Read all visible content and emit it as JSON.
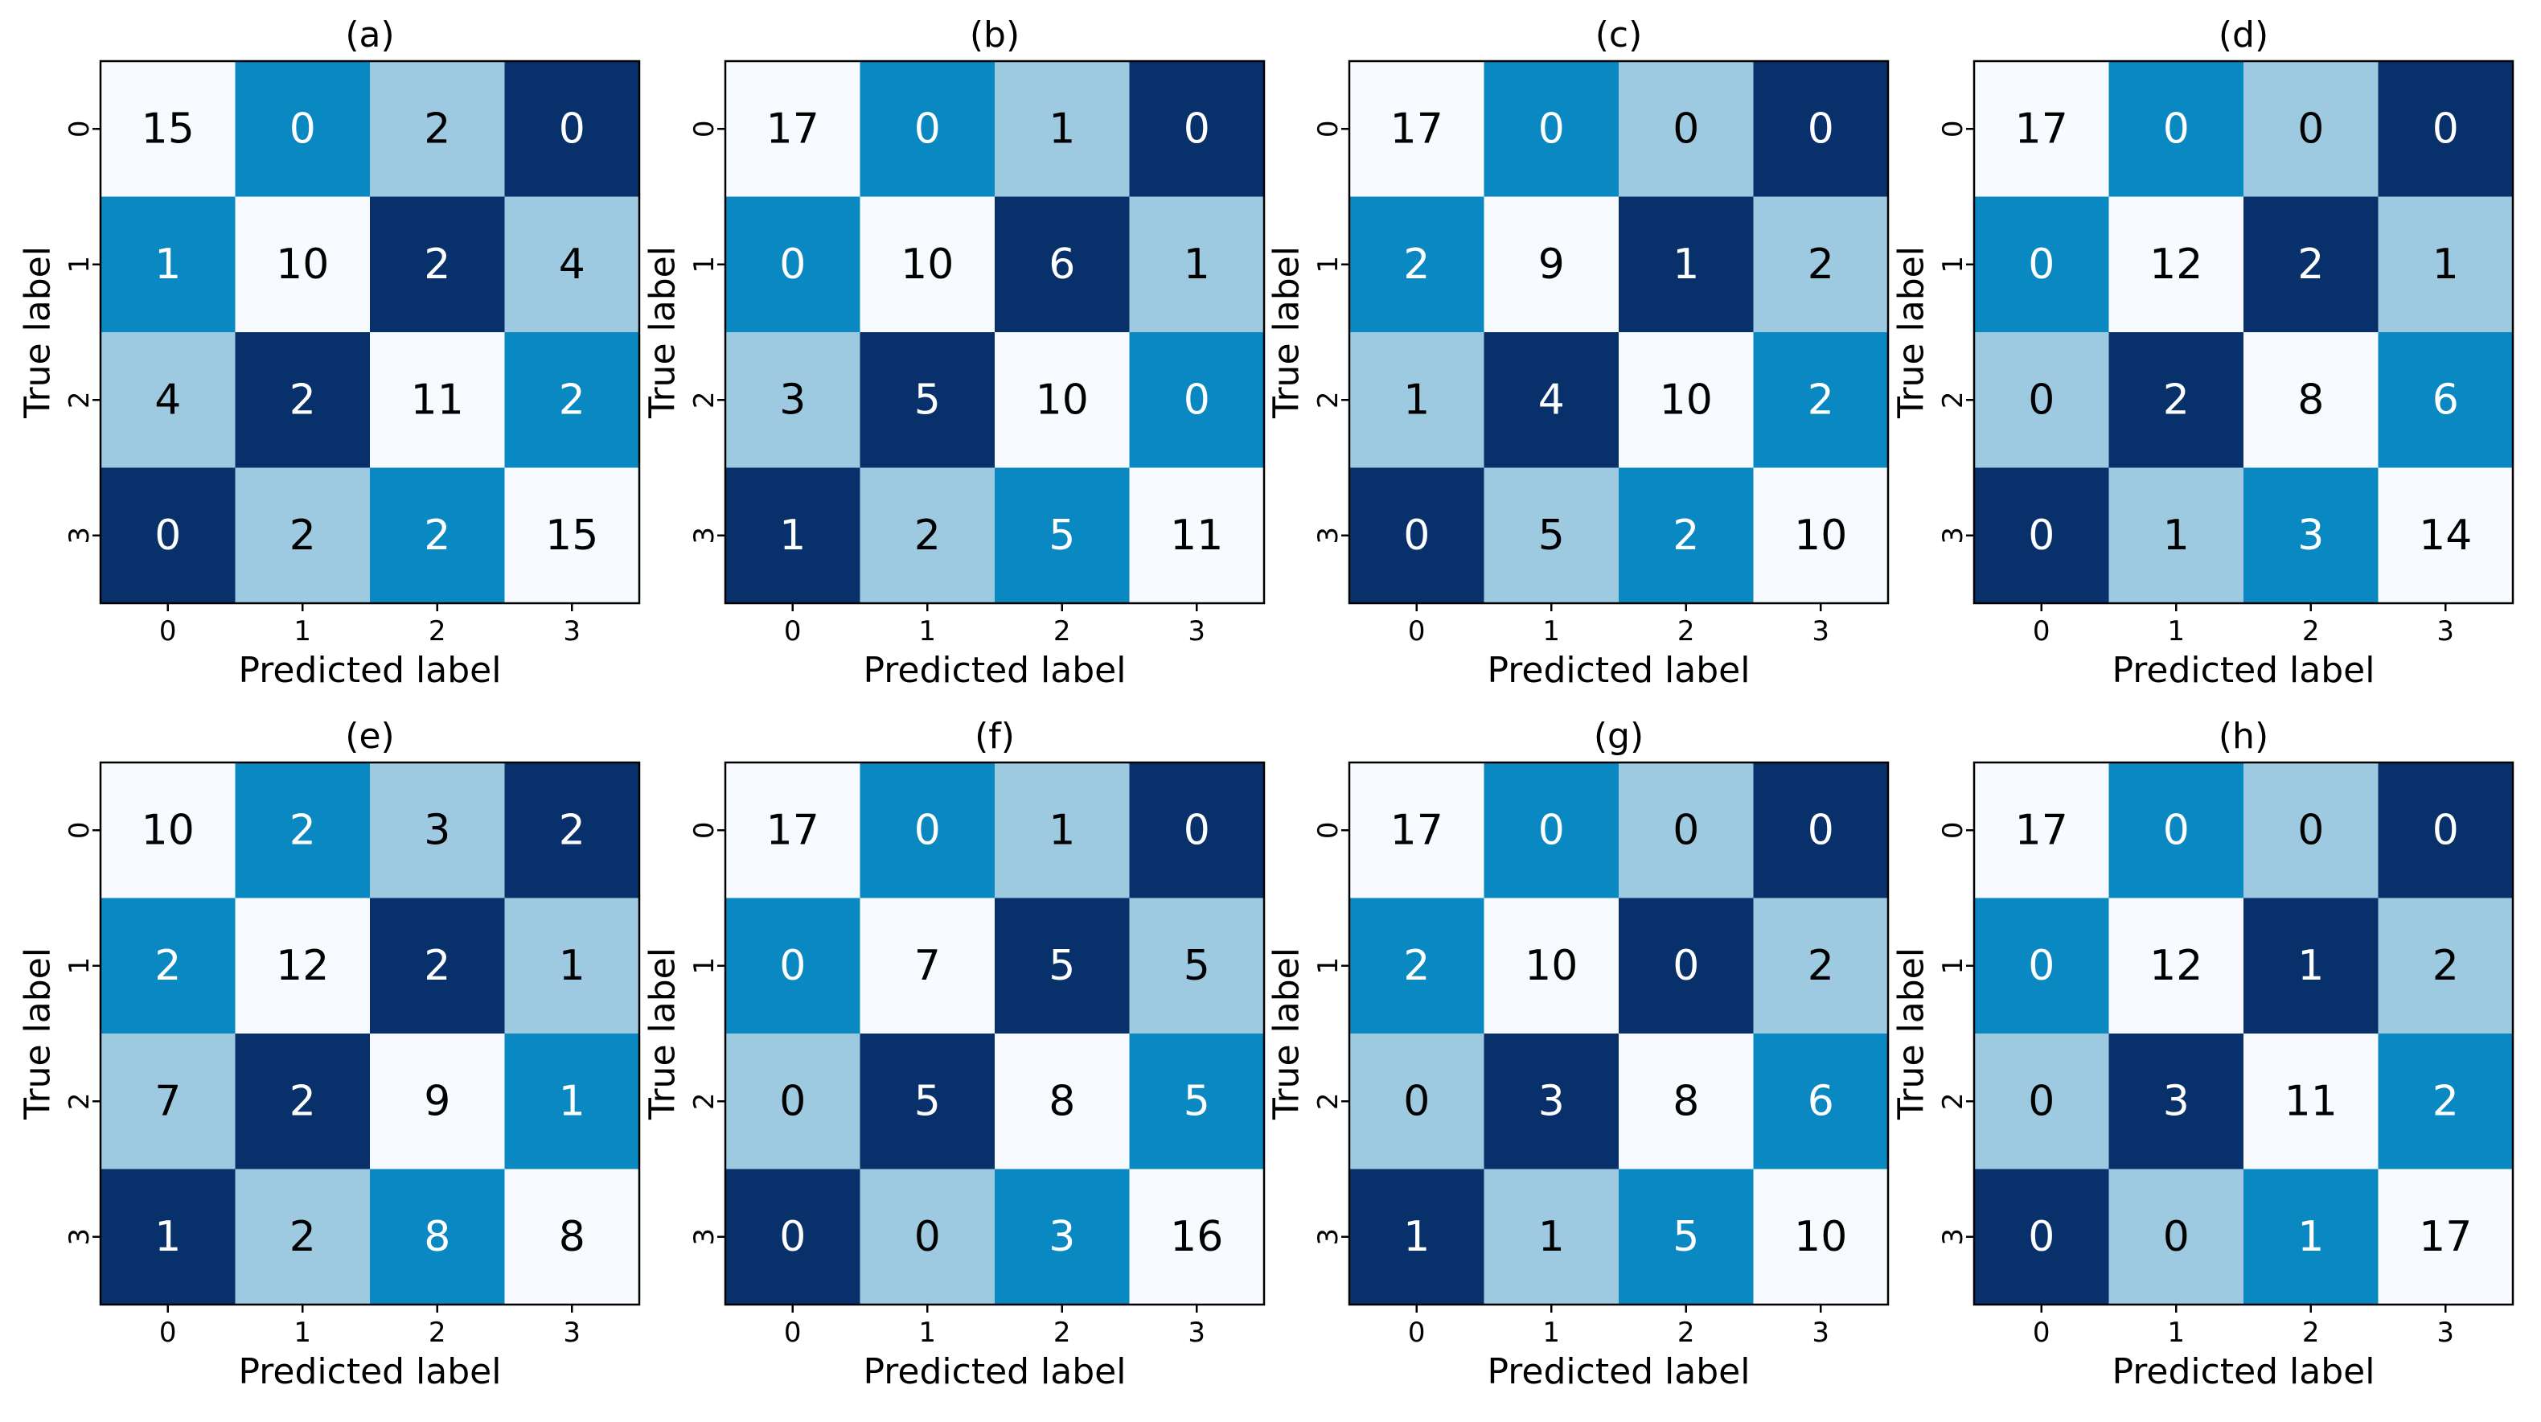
{
  "colors": {
    "white": "#f7fbff",
    "light": "#9ecae1",
    "mid": "#0a88c2",
    "dark": "#08306b",
    "text_dark": "#000000",
    "text_light": "#ffffff"
  },
  "chart_data": [
    {
      "type": "heatmap",
      "title": "(a)",
      "xlabel": "Predicted label",
      "ylabel": "True label",
      "x_ticks": [
        "0",
        "1",
        "2",
        "3"
      ],
      "y_ticks": [
        "0",
        "1",
        "2",
        "3"
      ],
      "values": [
        [
          15,
          0,
          2,
          0
        ],
        [
          1,
          10,
          2,
          4
        ],
        [
          4,
          2,
          11,
          2
        ],
        [
          0,
          2,
          2,
          15
        ]
      ],
      "shades": [
        [
          "white",
          "mid",
          "light",
          "dark"
        ],
        [
          "mid",
          "white",
          "dark",
          "light"
        ],
        [
          "light",
          "dark",
          "white",
          "mid"
        ],
        [
          "dark",
          "light",
          "mid",
          "white"
        ]
      ]
    },
    {
      "type": "heatmap",
      "title": "(b)",
      "xlabel": "Predicted label",
      "ylabel": "True label",
      "x_ticks": [
        "0",
        "1",
        "2",
        "3"
      ],
      "y_ticks": [
        "0",
        "1",
        "2",
        "3"
      ],
      "values": [
        [
          17,
          0,
          1,
          0
        ],
        [
          0,
          10,
          6,
          1
        ],
        [
          3,
          5,
          10,
          0
        ],
        [
          1,
          2,
          5,
          11
        ]
      ],
      "shades": [
        [
          "white",
          "mid",
          "light",
          "dark"
        ],
        [
          "mid",
          "white",
          "dark",
          "light"
        ],
        [
          "light",
          "dark",
          "white",
          "mid"
        ],
        [
          "dark",
          "light",
          "mid",
          "white"
        ]
      ]
    },
    {
      "type": "heatmap",
      "title": "(c)",
      "xlabel": "Predicted label",
      "ylabel": "True label",
      "x_ticks": [
        "0",
        "1",
        "2",
        "3"
      ],
      "y_ticks": [
        "0",
        "1",
        "2",
        "3"
      ],
      "values": [
        [
          17,
          0,
          0,
          0
        ],
        [
          2,
          9,
          1,
          2
        ],
        [
          1,
          4,
          10,
          2
        ],
        [
          0,
          5,
          2,
          10
        ]
      ],
      "shades": [
        [
          "white",
          "mid",
          "light",
          "dark"
        ],
        [
          "mid",
          "white",
          "dark",
          "light"
        ],
        [
          "light",
          "dark",
          "white",
          "mid"
        ],
        [
          "dark",
          "light",
          "mid",
          "white"
        ]
      ]
    },
    {
      "type": "heatmap",
      "title": "(d)",
      "xlabel": "Predicted label",
      "ylabel": "True label",
      "x_ticks": [
        "0",
        "1",
        "2",
        "3"
      ],
      "y_ticks": [
        "0",
        "1",
        "2",
        "3"
      ],
      "values": [
        [
          17,
          0,
          0,
          0
        ],
        [
          0,
          12,
          2,
          1
        ],
        [
          0,
          2,
          8,
          6
        ],
        [
          0,
          1,
          3,
          14
        ]
      ],
      "shades": [
        [
          "white",
          "mid",
          "light",
          "dark"
        ],
        [
          "mid",
          "white",
          "dark",
          "light"
        ],
        [
          "light",
          "dark",
          "white",
          "mid"
        ],
        [
          "dark",
          "light",
          "mid",
          "white"
        ]
      ]
    },
    {
      "type": "heatmap",
      "title": "(e)",
      "xlabel": "Predicted label",
      "ylabel": "True label",
      "x_ticks": [
        "0",
        "1",
        "2",
        "3"
      ],
      "y_ticks": [
        "0",
        "1",
        "2",
        "3"
      ],
      "values": [
        [
          10,
          2,
          3,
          2
        ],
        [
          2,
          12,
          2,
          1
        ],
        [
          7,
          2,
          9,
          1
        ],
        [
          1,
          2,
          8,
          8
        ]
      ],
      "shades": [
        [
          "white",
          "mid",
          "light",
          "dark"
        ],
        [
          "mid",
          "white",
          "dark",
          "light"
        ],
        [
          "light",
          "dark",
          "white",
          "mid"
        ],
        [
          "dark",
          "light",
          "mid",
          "white"
        ]
      ]
    },
    {
      "type": "heatmap",
      "title": "(f)",
      "xlabel": "Predicted label",
      "ylabel": "True label",
      "x_ticks": [
        "0",
        "1",
        "2",
        "3"
      ],
      "y_ticks": [
        "0",
        "1",
        "2",
        "3"
      ],
      "values": [
        [
          17,
          0,
          1,
          0
        ],
        [
          0,
          7,
          5,
          5
        ],
        [
          0,
          5,
          8,
          5
        ],
        [
          0,
          0,
          3,
          16
        ]
      ],
      "shades": [
        [
          "white",
          "mid",
          "light",
          "dark"
        ],
        [
          "mid",
          "white",
          "dark",
          "light"
        ],
        [
          "light",
          "dark",
          "white",
          "mid"
        ],
        [
          "dark",
          "light",
          "mid",
          "white"
        ]
      ]
    },
    {
      "type": "heatmap",
      "title": "(g)",
      "xlabel": "Predicted label",
      "ylabel": "True label",
      "x_ticks": [
        "0",
        "1",
        "2",
        "3"
      ],
      "y_ticks": [
        "0",
        "1",
        "2",
        "3"
      ],
      "values": [
        [
          17,
          0,
          0,
          0
        ],
        [
          2,
          10,
          0,
          2
        ],
        [
          0,
          3,
          8,
          6
        ],
        [
          1,
          1,
          5,
          10
        ]
      ],
      "shades": [
        [
          "white",
          "mid",
          "light",
          "dark"
        ],
        [
          "mid",
          "white",
          "dark",
          "light"
        ],
        [
          "light",
          "dark",
          "white",
          "mid"
        ],
        [
          "dark",
          "light",
          "mid",
          "white"
        ]
      ]
    },
    {
      "type": "heatmap",
      "title": "(h)",
      "xlabel": "Predicted label",
      "ylabel": "True label",
      "x_ticks": [
        "0",
        "1",
        "2",
        "3"
      ],
      "y_ticks": [
        "0",
        "1",
        "2",
        "3"
      ],
      "values": [
        [
          17,
          0,
          0,
          0
        ],
        [
          0,
          12,
          1,
          2
        ],
        [
          0,
          3,
          11,
          2
        ],
        [
          0,
          0,
          1,
          17
        ]
      ],
      "shades": [
        [
          "white",
          "mid",
          "light",
          "dark"
        ],
        [
          "mid",
          "white",
          "dark",
          "light"
        ],
        [
          "light",
          "dark",
          "white",
          "mid"
        ],
        [
          "dark",
          "light",
          "mid",
          "white"
        ]
      ]
    }
  ]
}
